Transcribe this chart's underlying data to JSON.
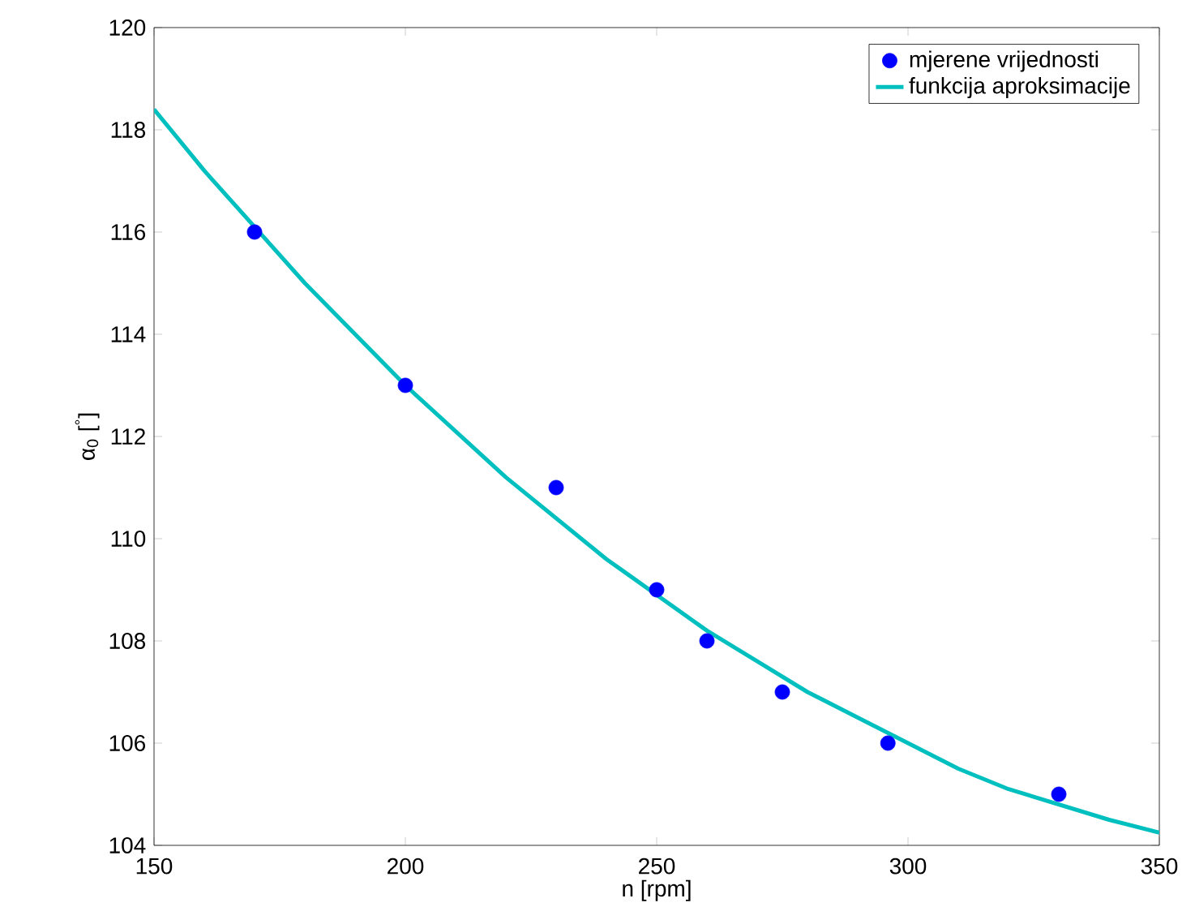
{
  "chart_data": {
    "type": "scatter",
    "xlabel": "n [rpm]",
    "ylabel": "α$_{0}$ [$^{°}$]",
    "xlim": [
      150,
      350
    ],
    "ylim": [
      104,
      120
    ],
    "xticks": [
      150,
      200,
      250,
      300,
      350
    ],
    "yticks": [
      104,
      106,
      108,
      110,
      112,
      114,
      116,
      118,
      120
    ],
    "legend": "top right",
    "grid": false,
    "series": [
      {
        "name": "mjerene vrijednosti",
        "marker": "circle",
        "color": "#0000ff",
        "x": [
          170,
          200,
          230,
          250,
          260,
          275,
          296,
          330
        ],
        "values": [
          116,
          113,
          111,
          109,
          108,
          107,
          106,
          105
        ]
      },
      {
        "name": "funkcija aproksimacije",
        "type": "line",
        "marker": "none",
        "line_style": "solid",
        "color": "#00bfbf",
        "x": [
          150,
          160,
          170,
          180,
          190,
          200,
          210,
          220,
          230,
          240,
          250,
          260,
          270,
          280,
          290,
          300,
          310,
          320,
          330,
          340,
          350
        ],
        "values": [
          118.4,
          117.2,
          116.1,
          115.0,
          114.0,
          113.0,
          112.1,
          111.2,
          110.4,
          109.6,
          108.9,
          108.2,
          107.6,
          107.0,
          106.5,
          106.0,
          105.5,
          105.1,
          104.8,
          104.5,
          104.25
        ]
      }
    ]
  }
}
